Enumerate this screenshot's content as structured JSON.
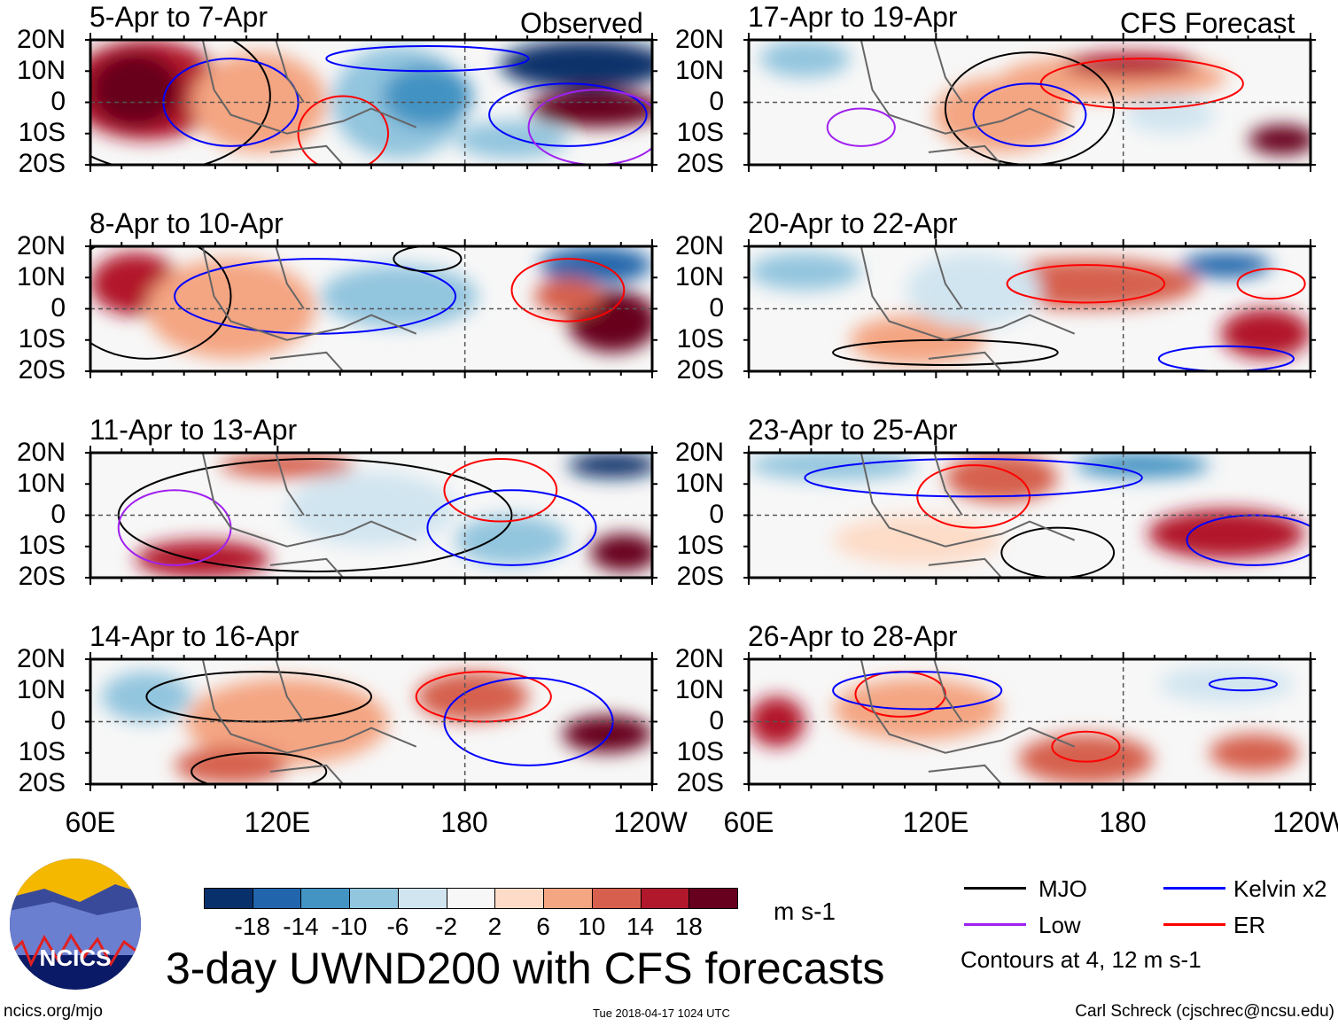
{
  "title": "3-day UWND200 with CFS forecasts",
  "observed_label": "Observed",
  "forecast_label": "CFS Forecast",
  "panels": [
    {
      "title": "5-Apr to 7-Apr",
      "group": "Observed"
    },
    {
      "title": "8-Apr to 10-Apr",
      "group": "Observed"
    },
    {
      "title": "11-Apr to 13-Apr",
      "group": "Observed"
    },
    {
      "title": "14-Apr to 16-Apr",
      "group": "Observed"
    },
    {
      "title": "17-Apr to 19-Apr",
      "group": "CFS Forecast"
    },
    {
      "title": "20-Apr to 22-Apr",
      "group": "CFS Forecast"
    },
    {
      "title": "23-Apr to 25-Apr",
      "group": "CFS Forecast"
    },
    {
      "title": "26-Apr to 28-Apr",
      "group": "CFS Forecast"
    }
  ],
  "lat_labels": [
    "20N",
    "10N",
    "0",
    "10S",
    "20S"
  ],
  "lon_labels": [
    "60E",
    "120E",
    "180",
    "120W"
  ],
  "colorbar": {
    "colors": [
      "#08306b",
      "#2166ac",
      "#4393c3",
      "#92c5de",
      "#d1e5f0",
      "#f7f7f7",
      "#fddbc7",
      "#f4a582",
      "#d6604d",
      "#b2182b",
      "#67001f"
    ],
    "labels": [
      "-18",
      "-14",
      "-10",
      "-6",
      "-2",
      "2",
      "6",
      "10",
      "14",
      "18"
    ],
    "units": "m s-1"
  },
  "legend": {
    "items": [
      {
        "label": "MJO",
        "color": "#000000"
      },
      {
        "label": "Kelvin x2",
        "color": "#0000ff"
      },
      {
        "label": "Low",
        "color": "#a020f0"
      },
      {
        "label": "ER",
        "color": "#ff0000"
      }
    ],
    "note": "Contours at 4, 12 m s-1"
  },
  "logo": {
    "text": "NCICS"
  },
  "footer": {
    "left": "ncics.org/mjo",
    "center": "Tue 2018-04-17 1024 UTC",
    "right": "Carl Schreck (cjschrec@ncsu.edu)"
  }
}
